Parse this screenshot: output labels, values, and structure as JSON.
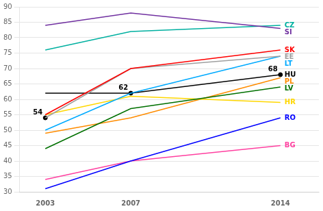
{
  "chart_data": {
    "type": "line",
    "x": [
      2003,
      2007,
      2014
    ],
    "series": [
      {
        "name": "SI",
        "color": "#7030A0",
        "values": [
          84,
          88,
          83
        ]
      },
      {
        "name": "CZ",
        "color": "#00B0A0",
        "values": [
          76,
          82,
          84
        ]
      },
      {
        "name": "SK",
        "color": "#FF0000",
        "values": [
          55,
          70,
          76
        ]
      },
      {
        "name": "EE",
        "color": "#A0A0A0",
        "values": [
          54,
          70,
          74
        ]
      },
      {
        "name": "LT",
        "color": "#00AAFF",
        "values": [
          50,
          62,
          74
        ]
      },
      {
        "name": "HU",
        "color": "#000000",
        "values": [
          62,
          62,
          68
        ]
      },
      {
        "name": "LV",
        "color": "#007000",
        "values": [
          44,
          57,
          64
        ]
      },
      {
        "name": "HR",
        "color": "#FFD700",
        "values": [
          55,
          61,
          59
        ]
      },
      {
        "name": "PL",
        "color": "#FF8C00",
        "values": [
          49,
          54,
          67
        ]
      },
      {
        "name": "RO",
        "color": "#0000FF",
        "values": [
          31,
          40,
          54
        ]
      },
      {
        "name": "BG",
        "color": "#FF40A0",
        "values": [
          34,
          40,
          45
        ]
      }
    ],
    "annotations": [
      {
        "x": 2003,
        "value": 54,
        "label": "54"
      },
      {
        "x": 2007,
        "value": 62,
        "label": "62"
      },
      {
        "x": 2014,
        "value": 68,
        "label": "68"
      }
    ],
    "xlim": [
      2001.8,
      2015.8
    ],
    "xticks": [
      2003,
      2007,
      2014
    ],
    "ylim": [
      30,
      90
    ],
    "yticks": [
      30,
      35,
      40,
      45,
      50,
      55,
      60,
      65,
      70,
      75,
      80,
      85,
      90
    ],
    "grid": "y"
  }
}
